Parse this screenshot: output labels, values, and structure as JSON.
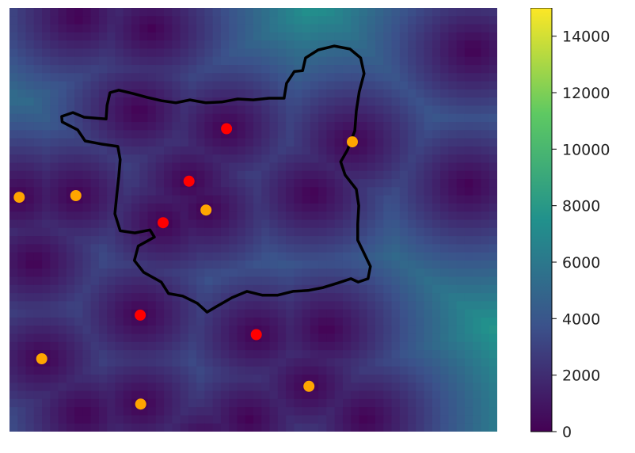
{
  "chart_data": {
    "type": "heatmap",
    "title": "",
    "xlabel": "",
    "ylabel": "",
    "axes_visible": false,
    "grid": false,
    "colormap": "viridis",
    "colors": {
      "red_points": "#ff0000",
      "orange_points": "#ffa500",
      "boundary": "#000000"
    },
    "value_range": [
      0,
      15000
    ],
    "colorbar": {
      "placement": "right",
      "ticks": [
        0,
        2000,
        4000,
        6000,
        8000,
        10000,
        12000,
        14000
      ],
      "tick_labels": [
        "0",
        "2000",
        "4000",
        "6000",
        "8000",
        "10000",
        "12000",
        "14000"
      ]
    },
    "extent": {
      "x": [
        0,
        100
      ],
      "y": [
        0,
        100
      ]
    },
    "red_points": [
      {
        "x": 44.5,
        "y": 71.5
      },
      {
        "x": 36.8,
        "y": 59.1
      },
      {
        "x": 31.5,
        "y": 49.3
      },
      {
        "x": 26.8,
        "y": 27.5
      },
      {
        "x": 50.6,
        "y": 22.9
      }
    ],
    "orange_points": [
      {
        "x": 70.3,
        "y": 68.4
      },
      {
        "x": 2.0,
        "y": 55.3
      },
      {
        "x": 13.6,
        "y": 55.7
      },
      {
        "x": 40.3,
        "y": 52.3
      },
      {
        "x": 6.6,
        "y": 17.2
      },
      {
        "x": 61.4,
        "y": 10.7
      },
      {
        "x": 26.9,
        "y": 6.5
      }
    ],
    "boundary_polygon": [
      [
        10.7,
        74.4
      ],
      [
        13.0,
        75.3
      ],
      [
        15.3,
        74.2
      ],
      [
        19.8,
        73.8
      ],
      [
        20.0,
        77.0
      ],
      [
        20.6,
        80.0
      ],
      [
        22.4,
        80.6
      ],
      [
        25.3,
        79.8
      ],
      [
        28.2,
        78.9
      ],
      [
        31.2,
        78.1
      ],
      [
        34.1,
        77.6
      ],
      [
        37.0,
        78.3
      ],
      [
        40.3,
        77.6
      ],
      [
        43.5,
        77.8
      ],
      [
        46.8,
        78.5
      ],
      [
        50.0,
        78.3
      ],
      [
        53.2,
        78.7
      ],
      [
        56.3,
        78.7
      ],
      [
        56.8,
        82.2
      ],
      [
        58.4,
        85.0
      ],
      [
        60.1,
        85.2
      ],
      [
        60.7,
        88.2
      ],
      [
        63.3,
        90.1
      ],
      [
        66.6,
        91.0
      ],
      [
        69.8,
        90.3
      ],
      [
        72.0,
        88.2
      ],
      [
        72.7,
        84.5
      ],
      [
        71.7,
        80.2
      ],
      [
        71.1,
        75.7
      ],
      [
        70.8,
        71.0
      ],
      [
        69.3,
        66.5
      ],
      [
        67.9,
        63.7
      ],
      [
        68.8,
        60.6
      ],
      [
        71.1,
        57.2
      ],
      [
        71.6,
        53.3
      ],
      [
        71.4,
        49.0
      ],
      [
        71.4,
        45.2
      ],
      [
        72.7,
        42.1
      ],
      [
        74.0,
        39.0
      ],
      [
        73.5,
        36.1
      ],
      [
        71.5,
        35.3
      ],
      [
        70.0,
        36.1
      ],
      [
        67.4,
        35.1
      ],
      [
        64.3,
        34.0
      ],
      [
        61.2,
        33.3
      ],
      [
        58.1,
        33.1
      ],
      [
        55.0,
        32.2
      ],
      [
        51.8,
        32.2
      ],
      [
        48.7,
        33.1
      ],
      [
        45.6,
        31.6
      ],
      [
        42.4,
        29.5
      ],
      [
        40.5,
        28.2
      ],
      [
        38.5,
        30.3
      ],
      [
        35.5,
        32.0
      ],
      [
        32.6,
        32.6
      ],
      [
        31.1,
        35.3
      ],
      [
        27.5,
        37.6
      ],
      [
        25.6,
        40.4
      ],
      [
        26.4,
        43.8
      ],
      [
        29.7,
        45.9
      ],
      [
        28.8,
        47.6
      ],
      [
        25.7,
        46.9
      ],
      [
        22.7,
        47.4
      ],
      [
        21.6,
        51.4
      ],
      [
        22.0,
        55.9
      ],
      [
        22.4,
        60.2
      ],
      [
        22.7,
        64.2
      ],
      [
        22.2,
        67.3
      ],
      [
        18.7,
        67.9
      ],
      [
        15.5,
        68.6
      ],
      [
        14.0,
        71.2
      ],
      [
        10.8,
        73.1
      ]
    ]
  }
}
